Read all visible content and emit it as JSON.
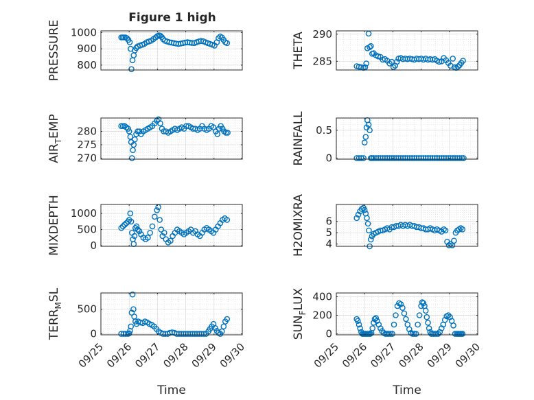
{
  "figure": {
    "title": "Figure 1 high",
    "marker_color": "#0072BD",
    "xticks": [
      "09/25",
      "09/26",
      "09/27",
      "09/28",
      "09/29",
      "09/30"
    ],
    "xlabel": "Time"
  },
  "chart_data": [
    {
      "type": "scatter",
      "id": "pressure",
      "title": "Figure 1 high",
      "ylabel": "PRESSURE",
      "xlabel": "",
      "ylim": [
        770,
        1010
      ],
      "yticks": [
        800,
        900,
        1000
      ],
      "ytick_labels": [
        "800",
        "900",
        "1000"
      ],
      "x": [
        25.72,
        25.77,
        25.82,
        25.87,
        25.92,
        25.97,
        26.02,
        26.05,
        26.08,
        26.12,
        26.16,
        26.2,
        26.25,
        26.3,
        26.38,
        26.46,
        26.54,
        26.62,
        26.7,
        26.78,
        26.86,
        26.94,
        27.0,
        27.05,
        27.1,
        27.15,
        27.2,
        27.26,
        27.34,
        27.42,
        27.5,
        27.58,
        27.66,
        27.74,
        27.82,
        27.9,
        27.98,
        28.06,
        28.14,
        28.22,
        28.3,
        28.38,
        28.46,
        28.54,
        28.62,
        28.7,
        28.78,
        28.86,
        28.94,
        29.02,
        29.1,
        29.16,
        29.22,
        29.28,
        29.34,
        29.4,
        29.46
      ],
      "y": [
        970,
        970,
        970,
        970,
        965,
        955,
        940,
        900,
        775,
        830,
        860,
        890,
        905,
        915,
        920,
        925,
        930,
        940,
        945,
        950,
        960,
        970,
        978,
        982,
        980,
        972,
        960,
        950,
        945,
        940,
        938,
        935,
        932,
        930,
        932,
        935,
        938,
        940,
        938,
        936,
        935,
        940,
        945,
        948,
        946,
        940,
        935,
        930,
        925,
        920,
        940,
        965,
        975,
        970,
        955,
        940,
        935
      ]
    },
    {
      "type": "scatter",
      "id": "theta",
      "title": "",
      "ylabel": "THETA",
      "xlabel": "",
      "ylim": [
        283.4,
        290.6
      ],
      "yticks": [
        285,
        290
      ],
      "ytick_labels": [
        "285",
        "290"
      ],
      "x": [
        25.72,
        25.8,
        25.88,
        25.96,
        26.02,
        26.06,
        26.1,
        26.14,
        26.18,
        26.22,
        26.27,
        26.32,
        26.4,
        26.48,
        26.56,
        26.64,
        26.72,
        26.8,
        26.88,
        26.96,
        27.02,
        27.08,
        27.14,
        27.2,
        27.28,
        27.36,
        27.44,
        27.52,
        27.6,
        27.68,
        27.76,
        27.84,
        27.92,
        28.0,
        28.08,
        28.16,
        28.24,
        28.32,
        28.4,
        28.48,
        28.56,
        28.64,
        28.72,
        28.8,
        28.88,
        28.96,
        29.04,
        29.12,
        29.18,
        29.24,
        29.3,
        29.36,
        29.42,
        29.48
      ],
      "y": [
        284.1,
        284.0,
        283.9,
        283.8,
        283.9,
        284.6,
        287.4,
        290.1,
        287.6,
        287.8,
        286.4,
        286.5,
        286.1,
        285.9,
        285.8,
        285.3,
        285.4,
        285.1,
        284.6,
        284.9,
        283.9,
        284.2,
        284.9,
        285.5,
        285.6,
        285.4,
        285.5,
        285.4,
        285.5,
        285.4,
        285.3,
        285.5,
        285.4,
        285.5,
        285.3,
        285.5,
        285.3,
        285.4,
        285.3,
        285.4,
        285.1,
        284.9,
        285.0,
        285.6,
        285.2,
        284.7,
        284.2,
        285.5,
        283.9,
        283.8,
        284.0,
        284.3,
        284.7,
        285.1
      ]
    },
    {
      "type": "scatter",
      "id": "air_temp",
      "title": "",
      "ylabel": "AIR_TEMP",
      "ylabel_parts": [
        "AIR",
        "T",
        "EMP"
      ],
      "xlabel": "",
      "ylim": [
        269.6,
        285
      ],
      "yticks": [
        270,
        275,
        280
      ],
      "ytick_labels": [
        "270",
        "275",
        "280"
      ],
      "x": [
        25.72,
        25.78,
        25.84,
        25.9,
        25.96,
        26.0,
        26.04,
        26.07,
        26.1,
        26.13,
        26.16,
        26.2,
        26.25,
        26.3,
        26.36,
        26.42,
        26.5,
        26.58,
        26.66,
        26.74,
        26.82,
        26.9,
        26.98,
        27.04,
        27.1,
        27.16,
        27.22,
        27.3,
        27.38,
        27.46,
        27.54,
        27.62,
        27.7,
        27.78,
        27.86,
        27.94,
        28.02,
        28.1,
        28.18,
        28.26,
        28.34,
        28.42,
        28.5,
        28.58,
        28.66,
        28.74,
        28.82,
        28.9,
        28.98,
        29.06,
        29.12,
        29.18,
        29.24,
        29.3,
        29.36,
        29.42,
        29.48
      ],
      "y": [
        282,
        282,
        282,
        281.5,
        281,
        280,
        278,
        276,
        270,
        273,
        275,
        277,
        279,
        280,
        280,
        279,
        280,
        280.5,
        281,
        281.5,
        282,
        283,
        284,
        284.5,
        283,
        281,
        280,
        280,
        279.5,
        280,
        280.5,
        281,
        280.5,
        281,
        281.5,
        281,
        282,
        282,
        281.5,
        281,
        281,
        280.5,
        281,
        282,
        281,
        280.5,
        281,
        282,
        281.5,
        280,
        279,
        281,
        282,
        281,
        280,
        279.5,
        279.5
      ]
    },
    {
      "type": "scatter",
      "id": "rainfall",
      "title": "",
      "ylabel": "RAINFALL",
      "xlabel": "",
      "ylim": [
        -0.02,
        0.72
      ],
      "yticks": [
        0,
        0.5
      ],
      "ytick_labels": [
        "0",
        "0.5"
      ],
      "x": [
        25.72,
        25.8,
        25.88,
        25.96,
        26.0,
        26.04,
        26.07,
        26.1,
        26.14,
        26.18,
        26.22,
        26.26,
        26.32,
        26.4,
        26.48,
        26.56,
        26.64,
        26.72,
        26.8,
        26.88,
        26.96,
        27.04,
        27.12,
        27.2,
        27.28,
        27.36,
        27.44,
        27.52,
        27.6,
        27.68,
        27.76,
        27.84,
        27.92,
        28.0,
        28.08,
        28.16,
        28.24,
        28.32,
        28.4,
        28.48,
        28.56,
        28.64,
        28.72,
        28.8,
        28.88,
        28.96,
        29.04,
        29.12,
        29.2,
        29.28,
        29.36,
        29.44,
        29.5
      ],
      "y": [
        0,
        0,
        0,
        0,
        0.28,
        0.38,
        0.55,
        0.68,
        0.6,
        0.5,
        0,
        0,
        0,
        0,
        0,
        0,
        0,
        0,
        0,
        0,
        0,
        0,
        0,
        0,
        0,
        0,
        0,
        0,
        0,
        0,
        0,
        0,
        0,
        0,
        0,
        0,
        0,
        0,
        0,
        0,
        0,
        0,
        0,
        0,
        0,
        0,
        0,
        0,
        0,
        0,
        0,
        0,
        0
      ]
    },
    {
      "type": "scatter",
      "id": "mixdepth",
      "title": "",
      "ylabel": "MIXDEPTH",
      "xlabel": "",
      "ylim": [
        -20,
        1280
      ],
      "yticks": [
        0,
        500,
        1000
      ],
      "ytick_labels": [
        "0",
        "500",
        "1000"
      ],
      "x": [
        25.72,
        25.78,
        25.84,
        25.9,
        25.96,
        26.0,
        26.04,
        26.07,
        26.1,
        26.13,
        26.16,
        26.19,
        26.22,
        26.26,
        26.3,
        26.36,
        26.42,
        26.5,
        26.58,
        26.66,
        26.74,
        26.82,
        26.9,
        26.98,
        27.03,
        27.08,
        27.13,
        27.18,
        27.24,
        27.3,
        27.38,
        27.46,
        27.54,
        27.62,
        27.7,
        27.78,
        27.86,
        27.94,
        28.02,
        28.1,
        28.18,
        28.26,
        28.34,
        28.42,
        28.5,
        28.58,
        28.66,
        28.74,
        28.82,
        28.9,
        28.98,
        29.06,
        29.14,
        29.22,
        29.3,
        29.38,
        29.46
      ],
      "y": [
        550,
        600,
        650,
        700,
        750,
        800,
        1000,
        750,
        400,
        200,
        50,
        300,
        550,
        600,
        500,
        450,
        350,
        250,
        200,
        250,
        400,
        600,
        900,
        1100,
        1200,
        800,
        500,
        300,
        400,
        200,
        100,
        150,
        300,
        400,
        500,
        450,
        400,
        350,
        400,
        450,
        500,
        400,
        450,
        350,
        300,
        400,
        500,
        550,
        500,
        450,
        400,
        500,
        600,
        700,
        800,
        850,
        800
      ]
    },
    {
      "type": "scatter",
      "id": "h2omixra",
      "title": "",
      "ylabel": "H2OMIXRA",
      "xlabel": "",
      "ylim": [
        3.8,
        7.5
      ],
      "yticks": [
        4,
        5,
        6
      ],
      "ytick_labels": [
        "4",
        "5",
        "6"
      ],
      "x": [
        25.72,
        25.78,
        25.84,
        25.9,
        25.96,
        26.0,
        26.04,
        26.08,
        26.12,
        26.15,
        26.18,
        26.22,
        26.26,
        26.32,
        26.4,
        26.48,
        26.56,
        26.64,
        26.72,
        26.8,
        26.88,
        26.96,
        27.04,
        27.12,
        27.2,
        27.28,
        27.36,
        27.44,
        27.52,
        27.6,
        27.68,
        27.76,
        27.84,
        27.92,
        28.0,
        28.08,
        28.16,
        28.24,
        28.32,
        28.4,
        28.48,
        28.56,
        28.64,
        28.72,
        28.8,
        28.86,
        28.92,
        28.98,
        29.04,
        29.1,
        29.16,
        29.22,
        29.28,
        29.34,
        29.4,
        29.46
      ],
      "y": [
        6.3,
        6.6,
        6.9,
        7.1,
        7.2,
        7.0,
        6.7,
        6.3,
        5.8,
        5.2,
        3.8,
        4.4,
        4.7,
        4.9,
        5.0,
        5.1,
        5.2,
        5.2,
        5.3,
        5.4,
        5.3,
        5.5,
        5.5,
        5.6,
        5.6,
        5.7,
        5.6,
        5.7,
        5.6,
        5.7,
        5.6,
        5.6,
        5.5,
        5.5,
        5.4,
        5.4,
        5.3,
        5.3,
        5.4,
        5.3,
        5.2,
        5.3,
        5.2,
        5.1,
        5.3,
        5.2,
        4.2,
        3.9,
        4.0,
        3.9,
        4.3,
        5.0,
        5.2,
        5.3,
        5.4,
        5.3
      ]
    },
    {
      "type": "scatter",
      "id": "terr_msl",
      "title": "",
      "ylabel": "TERR_MSL",
      "ylabel_parts": [
        "TERR",
        "M",
        "SL"
      ],
      "xlabel": "Time",
      "ylim": [
        -20,
        830
      ],
      "yticks": [
        0,
        500
      ],
      "ytick_labels": [
        "0",
        "500"
      ],
      "x": [
        25.72,
        25.8,
        25.88,
        25.96,
        26.0,
        26.03,
        26.06,
        26.09,
        26.12,
        26.15,
        26.18,
        26.22,
        26.26,
        26.32,
        26.4,
        26.48,
        26.56,
        26.64,
        26.72,
        26.8,
        26.88,
        26.96,
        27.04,
        27.12,
        27.2,
        27.28,
        27.36,
        27.44,
        27.52,
        27.6,
        27.68,
        27.76,
        27.84,
        27.92,
        28.0,
        28.08,
        28.16,
        28.24,
        28.32,
        28.4,
        28.48,
        28.56,
        28.64,
        28.72,
        28.8,
        28.86,
        28.92,
        28.98,
        29.04,
        29.1,
        29.16,
        29.22,
        29.28,
        29.34,
        29.4,
        29.46
      ],
      "y": [
        0,
        0,
        0,
        0,
        10,
        60,
        150,
        430,
        800,
        500,
        350,
        250,
        200,
        250,
        230,
        220,
        250,
        230,
        200,
        180,
        150,
        100,
        50,
        20,
        0,
        0,
        0,
        20,
        30,
        20,
        0,
        0,
        0,
        0,
        0,
        0,
        0,
        0,
        0,
        0,
        0,
        0,
        0,
        0,
        50,
        100,
        150,
        200,
        120,
        60,
        20,
        0,
        50,
        150,
        250,
        300
      ]
    },
    {
      "type": "scatter",
      "id": "sun_flux",
      "title": "",
      "ylabel": "SUN_FLUX",
      "ylabel_parts": [
        "SUN",
        "F",
        "LUX"
      ],
      "xlabel": "Time",
      "ylim": [
        -10,
        440
      ],
      "yticks": [
        0,
        200,
        400
      ],
      "ytick_labels": [
        "0",
        "200",
        "400"
      ],
      "x": [
        25.72,
        25.76,
        25.8,
        25.84,
        25.88,
        25.92,
        25.96,
        26.0,
        26.04,
        26.08,
        26.12,
        26.16,
        26.2,
        26.24,
        26.28,
        26.32,
        26.36,
        26.4,
        26.44,
        26.5,
        26.56,
        26.62,
        26.68,
        26.74,
        26.8,
        26.86,
        26.92,
        26.98,
        27.04,
        27.1,
        27.16,
        27.22,
        27.28,
        27.34,
        27.4,
        27.46,
        27.52,
        27.58,
        27.64,
        27.7,
        27.76,
        27.82,
        27.88,
        27.94,
        28.0,
        28.04,
        28.08,
        28.12,
        28.16,
        28.2,
        28.24,
        28.28,
        28.32,
        28.36,
        28.42,
        28.48,
        28.54,
        28.6,
        28.66,
        28.72,
        28.78,
        28.84,
        28.9,
        28.96,
        29.02,
        29.08,
        29.14,
        29.2,
        29.26,
        29.3,
        29.34,
        29.38,
        29.42,
        29.46
      ],
      "y": [
        160,
        140,
        100,
        60,
        20,
        0,
        0,
        0,
        0,
        0,
        0,
        0,
        0,
        10,
        60,
        120,
        160,
        170,
        140,
        100,
        60,
        30,
        10,
        0,
        0,
        0,
        0,
        0,
        100,
        200,
        300,
        330,
        320,
        280,
        220,
        160,
        100,
        50,
        10,
        0,
        0,
        0,
        100,
        200,
        300,
        340,
        330,
        300,
        250,
        180,
        120,
        60,
        20,
        0,
        0,
        0,
        0,
        0,
        20,
        60,
        100,
        150,
        190,
        200,
        180,
        140,
        90,
        0,
        0,
        0,
        0,
        0,
        0,
        0
      ]
    }
  ]
}
